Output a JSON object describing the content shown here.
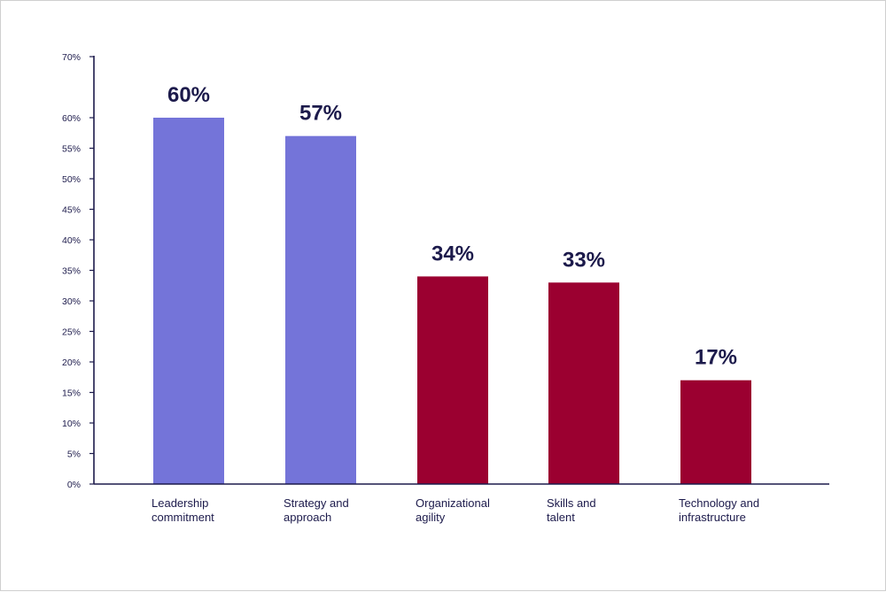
{
  "chart_data": {
    "type": "bar",
    "categories": [
      [
        "Leadership",
        "commitment"
      ],
      [
        "Strategy and",
        "approach"
      ],
      [
        "Organizational",
        "agility"
      ],
      [
        "Skills and",
        "talent"
      ],
      [
        "Technology and",
        "infrastructure"
      ]
    ],
    "values": [
      60,
      57,
      34,
      33,
      17
    ],
    "data_labels": [
      "60%",
      "57%",
      "34%",
      "33%",
      "17%"
    ],
    "bar_colors": [
      "#7474d9",
      "#7474d9",
      "#9b0030",
      "#9b0030",
      "#9b0030"
    ],
    "yticks": [
      0,
      5,
      10,
      15,
      20,
      25,
      30,
      35,
      40,
      45,
      50,
      55,
      60,
      70
    ],
    "ytick_labels": [
      "0%",
      "5%",
      "10%",
      "15%",
      "20%",
      "25%",
      "30%",
      "35%",
      "40%",
      "45%",
      "50%",
      "55%",
      "60%",
      "70%"
    ],
    "ylim": [
      0,
      70
    ],
    "axis_color": "#1c1a4b",
    "grid": false
  }
}
